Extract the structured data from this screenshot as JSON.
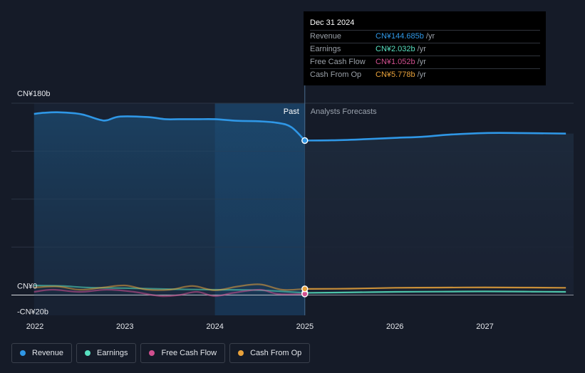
{
  "chart_data": {
    "type": "line",
    "y_tick_labels": [
      "CN¥180b",
      "CN¥0",
      "-CN¥20b"
    ],
    "x_tick_labels": [
      "2022",
      "2023",
      "2024",
      "2025",
      "2026",
      "2027"
    ],
    "ylim": [
      -20,
      180
    ],
    "past_label": "Past",
    "forecast_label": "Analysts Forecasts",
    "past_end_year": 2024.999,
    "highlight_start_year": 2024.0,
    "grid": true,
    "legend_position": "bottom",
    "series": [
      {
        "name": "Revenue",
        "color": "#2f97e6",
        "x": [
          2021.99,
          2022.1,
          2022.25,
          2022.45,
          2022.55,
          2022.72,
          2022.8,
          2022.95,
          2023.25,
          2023.45,
          2023.6,
          2023.8,
          2024.0,
          2024.25,
          2024.5,
          2024.7,
          2024.85,
          2024.999,
          2025.3,
          2025.6,
          2026.0,
          2026.3,
          2026.6,
          2027.0,
          2027.4,
          2027.9
        ],
        "y": [
          170,
          171,
          171.5,
          170.5,
          169,
          164.5,
          164,
          167.5,
          167,
          165,
          165,
          165,
          165,
          163.5,
          163,
          161.5,
          157.5,
          145,
          145.2,
          146,
          147.5,
          148.5,
          150.5,
          152,
          152,
          151.5
        ]
      },
      {
        "name": "Earnings",
        "color": "#58e0c0",
        "x": [
          2021.99,
          2022.3,
          2022.6,
          2023.0,
          2023.5,
          2024.0,
          2024.5,
          2024.999,
          2025.5,
          2026.0,
          2026.5,
          2027.0,
          2027.5,
          2027.9
        ],
        "y": [
          9,
          8.5,
          7,
          6.5,
          5.5,
          5,
          4.5,
          2.03,
          2.5,
          3,
          3.2,
          3.4,
          3.2,
          3.0
        ]
      },
      {
        "name": "Free Cash Flow",
        "color": "#d14f8f",
        "x": [
          2021.99,
          2022.2,
          2022.5,
          2022.8,
          2023.1,
          2023.4,
          2023.6,
          2023.8,
          2024.0,
          2024.2,
          2024.5,
          2024.7,
          2024.999
        ],
        "y": [
          3,
          5,
          3,
          5,
          3,
          -1,
          0,
          3,
          -1,
          2,
          5,
          1,
          1.05
        ]
      },
      {
        "name": "Cash From Op",
        "color": "#e9a23b",
        "x": [
          2021.99,
          2022.25,
          2022.5,
          2022.75,
          2023.0,
          2023.25,
          2023.5,
          2023.75,
          2024.0,
          2024.25,
          2024.5,
          2024.75,
          2024.999,
          2025.5,
          2026.0,
          2026.5,
          2027.0,
          2027.5,
          2027.9
        ],
        "y": [
          7,
          8,
          5,
          7,
          9,
          5,
          5,
          8.5,
          4.5,
          8,
          10,
          5,
          5.78,
          6,
          6.8,
          7,
          7.2,
          7,
          6.8
        ]
      }
    ]
  },
  "tooltip": {
    "date": "Dec 31 2024",
    "unit": "/yr",
    "rows": [
      {
        "name": "Revenue",
        "value": "CN¥144.685b",
        "color": "#2f97e6"
      },
      {
        "name": "Earnings",
        "value": "CN¥2.032b",
        "color": "#58e0c0"
      },
      {
        "name": "Free Cash Flow",
        "value": "CN¥1.052b",
        "color": "#d14f8f"
      },
      {
        "name": "Cash From Op",
        "value": "CN¥5.778b",
        "color": "#e9a23b"
      }
    ]
  },
  "legend": [
    {
      "label": "Revenue",
      "color": "#2f97e6"
    },
    {
      "label": "Earnings",
      "color": "#58e0c0"
    },
    {
      "label": "Free Cash Flow",
      "color": "#d14f8f"
    },
    {
      "label": "Cash From Op",
      "color": "#e9a23b"
    }
  ]
}
